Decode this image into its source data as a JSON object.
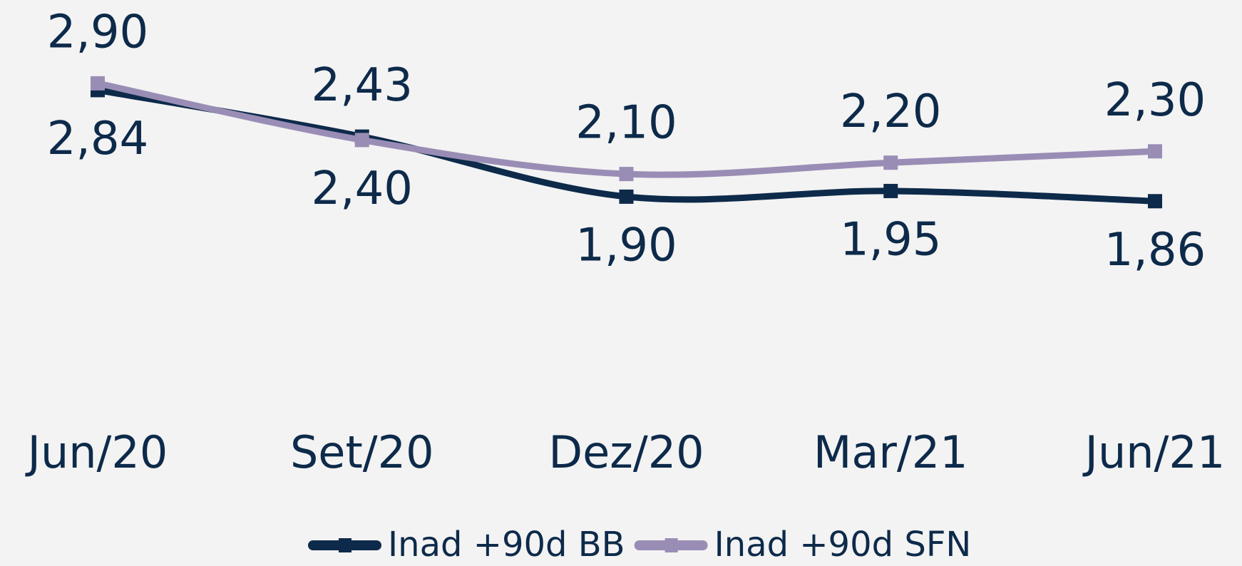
{
  "chart_data": {
    "type": "line",
    "categories": [
      "Jun/20",
      "Set/20",
      "Dez/20",
      "Mar/21",
      "Jun/21"
    ],
    "series": [
      {
        "name": "Inad +90d BB",
        "color": "#0d2a4a",
        "values": [
          2.84,
          2.43,
          1.9,
          1.95,
          1.86
        ],
        "value_labels": [
          "2,84",
          "2,43",
          "1,90",
          "1,95",
          "1,86"
        ]
      },
      {
        "name": "Inad +90d SFN",
        "color": "#9a8db5",
        "values": [
          2.9,
          2.4,
          2.1,
          2.2,
          2.3
        ],
        "value_labels": [
          "2,90",
          "2,40",
          "2,10",
          "2,20",
          "2,30"
        ]
      }
    ],
    "ylim": [
      0,
      3
    ],
    "grid": false,
    "legend": "bottom"
  }
}
